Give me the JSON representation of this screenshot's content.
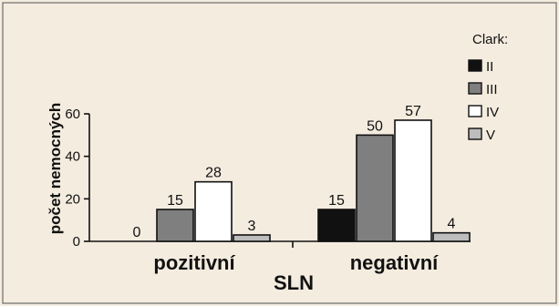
{
  "chart_data": {
    "type": "bar",
    "categories": [
      "pozitivní",
      "negativní"
    ],
    "series": [
      {
        "name": "II",
        "values": [
          0,
          15
        ],
        "labels": [
          "0",
          "15"
        ],
        "color": "#111111"
      },
      {
        "name": "III",
        "values": [
          15,
          50
        ],
        "labels": [
          "15",
          "50"
        ],
        "color": "#7f7f7f"
      },
      {
        "name": "IV",
        "values": [
          28,
          57
        ],
        "labels": [
          "28",
          "57"
        ],
        "color": "#ffffff"
      },
      {
        "name": "V",
        "values": [
          3,
          4
        ],
        "labels": [
          "3",
          "4"
        ],
        "color": "#bdbdbd"
      }
    ],
    "xlabel": "SLN",
    "ylabel": "počet nemocných",
    "ylim": [
      0,
      60
    ],
    "yticks": [
      "0",
      "20",
      "40",
      "60"
    ],
    "legend_title": "Clark:",
    "legend_position": "top-right",
    "grid": false
  },
  "colors": {
    "background": "#f4ecdf",
    "frame": "#6b6b6b",
    "ink": "#111111"
  }
}
